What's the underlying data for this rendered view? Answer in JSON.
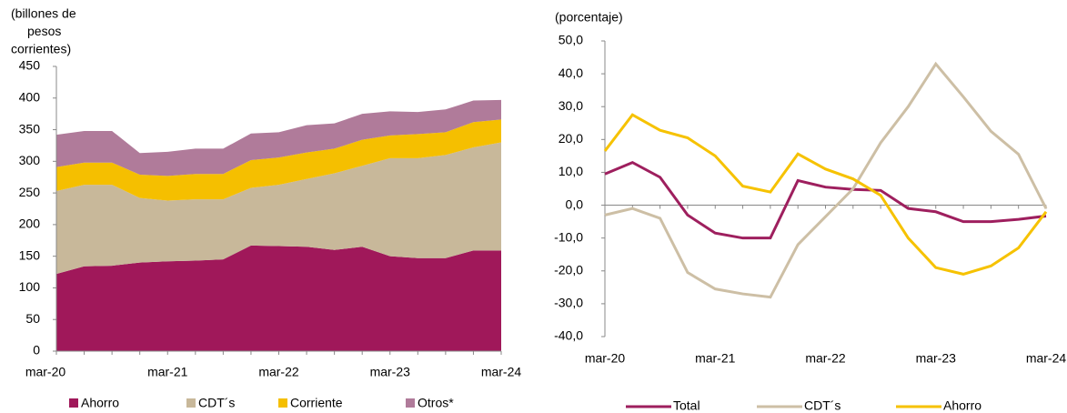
{
  "chart_data": [
    {
      "type": "stacked_area",
      "ylabel": [
        "(billones de",
        "pesos",
        "corrientes)"
      ],
      "categories": [
        "mar-20",
        null,
        null,
        null,
        "mar-21",
        null,
        null,
        null,
        "mar-22",
        null,
        null,
        null,
        "mar-23",
        null,
        null,
        null,
        "mar-24"
      ],
      "ylim": [
        0,
        450
      ],
      "yticks": [
        0,
        50,
        100,
        150,
        200,
        250,
        300,
        350,
        400,
        450
      ],
      "legend": "bottom",
      "series": [
        {
          "name": "Ahorro",
          "color": "#a0185a",
          "values": [
            122,
            134,
            135,
            140,
            142,
            143,
            145,
            167,
            166,
            165,
            160,
            165,
            150,
            147,
            147,
            159,
            159
          ]
        },
        {
          "name": "CDT´s",
          "color": "#c8b89a",
          "values": [
            131,
            129,
            128,
            102,
            96,
            97,
            95,
            91,
            97,
            107,
            121,
            128,
            155,
            158,
            163,
            163,
            171
          ]
        },
        {
          "name": "Corriente",
          "color": "#f5bf00",
          "values": [
            38,
            35,
            35,
            37,
            39,
            40,
            40,
            44,
            43,
            42,
            39,
            41,
            36,
            38,
            36,
            40,
            36
          ]
        },
        {
          "name": "Otros*",
          "color": "#b07b9a",
          "values": [
            51,
            50,
            50,
            34,
            38,
            40,
            40,
            42,
            40,
            43,
            40,
            41,
            38,
            35,
            36,
            34,
            31
          ]
        }
      ]
    },
    {
      "type": "line",
      "ylabel": "(porcentaje)",
      "categories": [
        "mar-20",
        null,
        null,
        null,
        "mar-21",
        null,
        null,
        null,
        "mar-22",
        null,
        null,
        null,
        "mar-23",
        null,
        null,
        null,
        "mar-24"
      ],
      "ylim": [
        -40,
        50
      ],
      "yticks": [
        {
          "value": -40,
          "label": "-40,0"
        },
        {
          "value": -30,
          "label": "-30,0"
        },
        {
          "value": -20,
          "label": "-20,0"
        },
        {
          "value": -10,
          "label": "-10,0"
        },
        {
          "value": 0,
          "label": "0,0"
        },
        {
          "value": 10,
          "label": "10,0"
        },
        {
          "value": 20,
          "label": "20,0"
        },
        {
          "value": 30,
          "label": "30,0"
        },
        {
          "value": 40,
          "label": "40,0"
        },
        {
          "value": 50,
          "label": "50,0"
        }
      ],
      "legend": "bottom",
      "series": [
        {
          "name": "Total",
          "color": "#9e1f5e",
          "values": [
            9.5,
            13,
            8.5,
            -3,
            -8.5,
            -10,
            -10,
            7.5,
            5.5,
            4.8,
            4.5,
            -1,
            -2,
            -5,
            -5,
            -4.3,
            -3.3
          ]
        },
        {
          "name": "CDT´s",
          "color": "#cdbfa5",
          "values": [
            -3,
            -1,
            -4,
            -20.5,
            -25.5,
            -27,
            -28,
            -12,
            -3.5,
            5,
            19,
            30,
            43,
            33,
            22.5,
            15.5,
            -1
          ]
        },
        {
          "name": "Ahorro",
          "color": "#f6c200",
          "values": [
            16.5,
            27.5,
            22.8,
            20.5,
            15,
            5.8,
            4,
            15.6,
            11,
            8,
            3,
            -10,
            -19,
            -21,
            -18.5,
            -13,
            -2
          ]
        }
      ]
    }
  ]
}
